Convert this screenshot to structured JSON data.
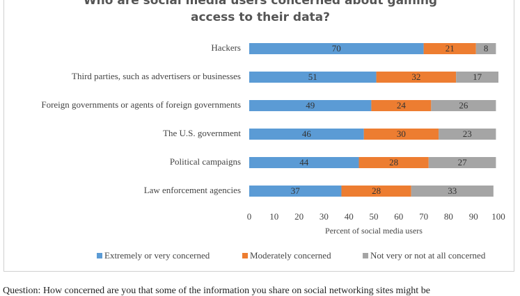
{
  "chart_data": {
    "type": "bar",
    "orientation": "horizontal",
    "stacked": true,
    "title": "Who are social media users concerned about gaining access to their data?",
    "xlabel": "Percent of social media users",
    "categories": [
      "Hackers",
      "Third parties, such as advertisers or businesses",
      "Foreign governments or agents of foreign governments",
      "The U.S. government",
      "Political campaigns",
      "Law enforcement agencies"
    ],
    "series": [
      {
        "name": "Extremely or very concerned",
        "color": "#5b9bd5",
        "values": [
          70,
          51,
          49,
          46,
          44,
          37
        ]
      },
      {
        "name": "Moderately concerned",
        "color": "#ed7d31",
        "values": [
          21,
          32,
          24,
          30,
          28,
          28
        ]
      },
      {
        "name": "Not very or not at all concerned",
        "color": "#a5a5a5",
        "values": [
          8,
          17,
          26,
          23,
          27,
          33
        ]
      }
    ],
    "xlim": [
      0,
      100
    ],
    "xticks": [
      0,
      10,
      20,
      30,
      40,
      50,
      60,
      70,
      80,
      90,
      100
    ],
    "grid": false,
    "legend": "bottom",
    "note": "Question: How concerned are you that some of the information you share on social networking sites might be"
  }
}
